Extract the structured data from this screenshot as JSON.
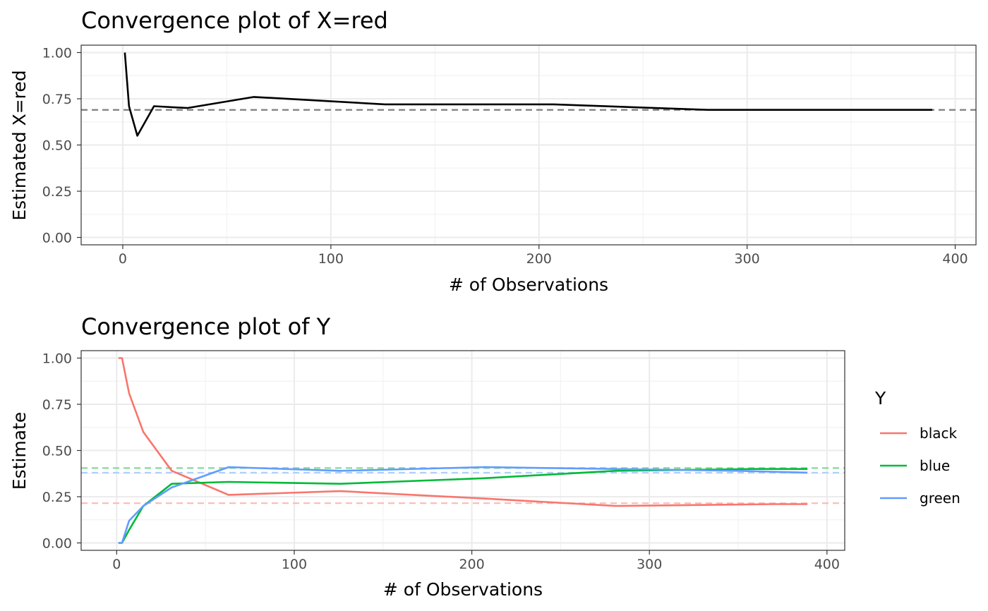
{
  "chart_data": [
    {
      "type": "line",
      "title": "Convergence plot of X=red",
      "xlabel": "# of Observations",
      "ylabel": "Estimated X=red",
      "xlim": [
        -20,
        410
      ],
      "ylim": [
        -0.04,
        1.04
      ],
      "x_ticks": [
        0,
        100,
        200,
        300,
        400
      ],
      "y_ticks": [
        0.0,
        0.25,
        0.5,
        0.75,
        1.0
      ],
      "y_tick_labels": [
        "0.00",
        "0.25",
        "0.50",
        "0.75",
        "1.00"
      ],
      "grid": true,
      "series": [
        {
          "color": "#000000",
          "style": "solid",
          "x": [
            1,
            3,
            7,
            15,
            31,
            63,
            126,
            207,
            281,
            389
          ],
          "y": [
            1.0,
            0.71,
            0.55,
            0.71,
            0.7,
            0.76,
            0.72,
            0.72,
            0.69,
            0.69
          ]
        }
      ],
      "reference_lines": [
        {
          "y": 0.69,
          "color": "#7f7f7f",
          "style": "dashed"
        }
      ]
    },
    {
      "type": "line",
      "title": "Convergence plot of Y",
      "xlabel": "# of Observations",
      "ylabel": "Estimate",
      "xlim": [
        -20,
        410
      ],
      "ylim": [
        -0.04,
        1.04
      ],
      "x_ticks": [
        0,
        100,
        200,
        300,
        400
      ],
      "y_ticks": [
        0.0,
        0.25,
        0.5,
        0.75,
        1.0
      ],
      "y_tick_labels": [
        "0.00",
        "0.25",
        "0.50",
        "0.75",
        "1.00"
      ],
      "grid": true,
      "legend": {
        "title": "Y",
        "position": "right"
      },
      "series": [
        {
          "name": "black",
          "color": "#F8766D",
          "x": [
            1,
            3,
            7,
            15,
            31,
            63,
            126,
            207,
            281,
            370,
            389
          ],
          "y": [
            1.0,
            1.0,
            0.81,
            0.6,
            0.39,
            0.26,
            0.28,
            0.24,
            0.2,
            0.21,
            0.21
          ]
        },
        {
          "name": "blue",
          "color": "#00BA38",
          "x": [
            1,
            3,
            7,
            15,
            31,
            63,
            126,
            207,
            281,
            360,
            389
          ],
          "y": [
            0.0,
            0.0,
            0.07,
            0.2,
            0.32,
            0.33,
            0.32,
            0.35,
            0.39,
            0.4,
            0.4
          ]
        },
        {
          "name": "green",
          "color": "#619CFF",
          "x": [
            1,
            3,
            7,
            15,
            31,
            63,
            126,
            207,
            281,
            350,
            389
          ],
          "y": [
            0.0,
            0.0,
            0.12,
            0.2,
            0.3,
            0.41,
            0.39,
            0.41,
            0.4,
            0.39,
            0.38
          ]
        }
      ],
      "reference_lines": [
        {
          "y": 0.405,
          "color": "#7fdc9b",
          "style": "dashed"
        },
        {
          "y": 0.38,
          "color": "#b0cdff",
          "style": "dashed"
        },
        {
          "y": 0.215,
          "color": "#fbbab6",
          "style": "dashed"
        }
      ]
    }
  ]
}
